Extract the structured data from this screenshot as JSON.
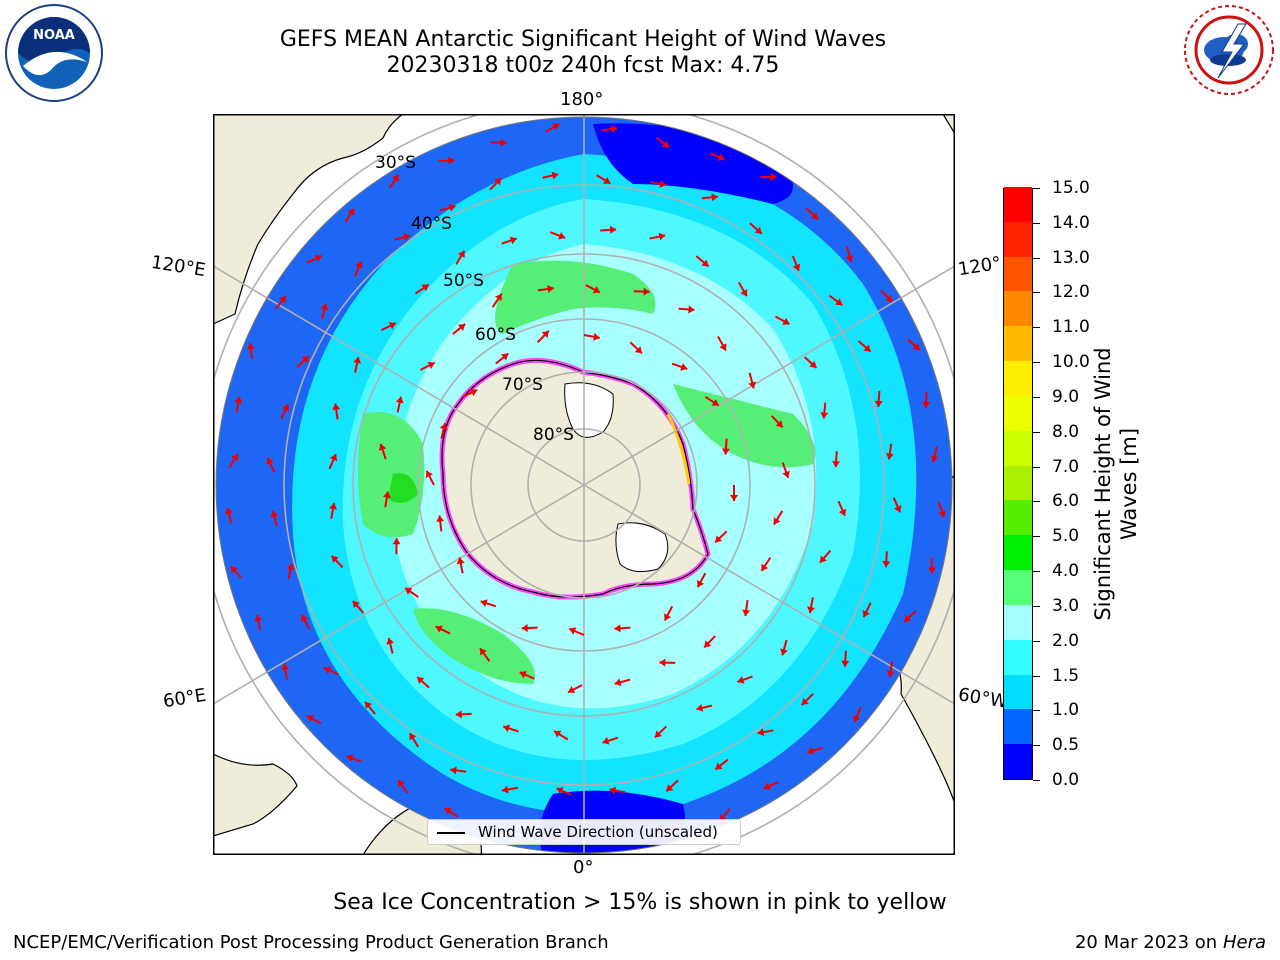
{
  "title": {
    "line1": "GEFS MEAN Antarctic Significant Height of Wind Waves",
    "line2": "20230318 t00z 240h fcst   Max: 4.75"
  },
  "map": {
    "projection": "south-polar-stereographic",
    "longitude_labels": {
      "top": "180°",
      "bottom": "0°",
      "left_upper": "120°E",
      "left_lower": "60°E",
      "right_upper": "120°",
      "right_lower": "60°W"
    },
    "latitude_labels": [
      "30°S",
      "40°S",
      "50°S",
      "60°S",
      "70°S",
      "80°S"
    ],
    "icons": {
      "vectors": "arrow-icon",
      "land": "land-mass",
      "noaa": "noaa-logo",
      "nws": "nws-logo"
    },
    "legend_label": "Wind Wave Direction (unscaled)"
  },
  "colorbar": {
    "title_line1": "Significant Height of Wind",
    "title_line2": "Waves [m]",
    "ticks": [
      "0.0",
      "0.5",
      "1.0",
      "1.5",
      "2.0",
      "3.0",
      "4.0",
      "5.0",
      "6.0",
      "7.0",
      "8.0",
      "9.0",
      "10.0",
      "11.0",
      "12.0",
      "13.0",
      "14.0",
      "15.0"
    ],
    "colors": [
      "#0000ff",
      "#0066ff",
      "#00ddff",
      "#33ffff",
      "#a3ffff",
      "#55ff77",
      "#00ee00",
      "#55ee00",
      "#aaee00",
      "#ccff00",
      "#eeff00",
      "#ffee00",
      "#ffbb00",
      "#ff8800",
      "#ff5500",
      "#ff2200",
      "#ff0000"
    ]
  },
  "colors": {
    "land": "#efecda",
    "grid": "#b0b0b0",
    "vector": "#ee0000",
    "sea_ice": "#ff44ff"
  },
  "caption": "Sea Ice Concentration > 15% is shown in pink to yellow",
  "footer": {
    "left": "NCEP/EMC/Verification Post Processing Product Generation Branch",
    "right_date": "20 Mar 2023 on",
    "right_host": "Hera"
  }
}
